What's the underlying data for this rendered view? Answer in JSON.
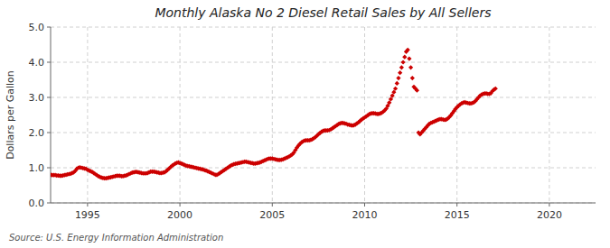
{
  "chart_data": {
    "type": "scatter",
    "title": "Monthly Alaska No 2 Diesel Retail Sales by All Sellers",
    "ylabel": "Dollars per Gallon",
    "source": "Source: U.S. Energy Information Administration",
    "color": "#cc0000",
    "marker": "diamond",
    "grid": true,
    "xlim": [
      1993.0,
      2022.5
    ],
    "ylim": [
      0.0,
      5.0
    ],
    "xticks": [
      1995,
      2000,
      2005,
      2010,
      2015,
      2020
    ],
    "yticks": [
      {
        "value": 0.0,
        "label": "0.0"
      },
      {
        "value": 1.0,
        "label": "1.0"
      },
      {
        "value": 2.0,
        "label": "2.0"
      },
      {
        "value": 3.0,
        "label": "3.0"
      },
      {
        "value": 4.0,
        "label": "4.0"
      },
      {
        "value": 5.0,
        "label": "5.0"
      }
    ],
    "x": [
      1993,
      1993.0833333333,
      1993.1666666667,
      1993.25,
      1993.3333333333,
      1993.4166666667,
      1993.5,
      1993.5833333333,
      1993.6666666667,
      1993.75,
      1993.8333333333,
      1993.9166666667,
      1994,
      1994.0833333333,
      1994.1666666667,
      1994.25,
      1994.3333333333,
      1994.4166666667,
      1994.5,
      1994.5833333333,
      1994.6666666667,
      1994.75,
      1994.8333333333,
      1994.9166666667,
      1995,
      1995.0833333333,
      1995.1666666667,
      1995.25,
      1995.3333333333,
      1995.4166666667,
      1995.5,
      1995.5833333333,
      1995.6666666667,
      1995.75,
      1995.8333333333,
      1995.9166666667,
      1996,
      1996.0833333333,
      1996.1666666667,
      1996.25,
      1996.3333333333,
      1996.4166666667,
      1996.5,
      1996.5833333333,
      1996.6666666667,
      1996.75,
      1996.8333333333,
      1996.9166666667,
      1997,
      1997.0833333333,
      1997.1666666667,
      1997.25,
      1997.3333333333,
      1997.4166666667,
      1997.5,
      1997.5833333333,
      1997.6666666667,
      1997.75,
      1997.8333333333,
      1997.9166666667,
      1998,
      1998.0833333333,
      1998.1666666667,
      1998.25,
      1998.3333333333,
      1998.4166666667,
      1998.5,
      1998.5833333333,
      1998.6666666667,
      1998.75,
      1998.8333333333,
      1998.9166666667,
      1999,
      1999.0833333333,
      1999.1666666667,
      1999.25,
      1999.3333333333,
      1999.4166666667,
      1999.5,
      1999.5833333333,
      1999.6666666667,
      1999.75,
      1999.8333333333,
      1999.9166666667,
      2000,
      2000.0833333333,
      2000.1666666667,
      2000.25,
      2000.3333333333,
      2000.4166666667,
      2000.5,
      2000.5833333333,
      2000.6666666667,
      2000.75,
      2000.8333333333,
      2000.9166666667,
      2001,
      2001.0833333333,
      2001.1666666667,
      2001.25,
      2001.3333333333,
      2001.4166666667,
      2001.5,
      2001.5833333333,
      2001.6666666667,
      2001.75,
      2001.8333333333,
      2001.9166666667,
      2002,
      2002.0833333333,
      2002.1666666667,
      2002.25,
      2002.3333333333,
      2002.4166666667,
      2002.5,
      2002.5833333333,
      2002.6666666667,
      2002.75,
      2002.8333333333,
      2002.9166666667,
      2003,
      2003.0833333333,
      2003.1666666667,
      2003.25,
      2003.3333333333,
      2003.4166666667,
      2003.5,
      2003.5833333333,
      2003.6666666667,
      2003.75,
      2003.8333333333,
      2003.9166666667,
      2004,
      2004.0833333333,
      2004.1666666667,
      2004.25,
      2004.3333333333,
      2004.4166666667,
      2004.5,
      2004.5833333333,
      2004.6666666667,
      2004.75,
      2004.8333333333,
      2004.9166666667,
      2005,
      2005.0833333333,
      2005.1666666667,
      2005.25,
      2005.3333333333,
      2005.4166666667,
      2005.5,
      2005.5833333333,
      2005.6666666667,
      2005.75,
      2005.8333333333,
      2005.9166666667,
      2006,
      2006.0833333333,
      2006.1666666667,
      2006.25,
      2006.3333333333,
      2006.4166666667,
      2006.5,
      2006.5833333333,
      2006.6666666667,
      2006.75,
      2006.8333333333,
      2006.9166666667,
      2007,
      2007.0833333333,
      2007.1666666667,
      2007.25,
      2007.3333333333,
      2007.4166666667,
      2007.5,
      2007.5833333333,
      2007.6666666667,
      2007.75,
      2007.8333333333,
      2007.9166666667,
      2008,
      2008.0833333333,
      2008.1666666667,
      2008.25,
      2008.3333333333,
      2008.4166666667,
      2008.5,
      2008.5833333333,
      2008.6666666667,
      2008.75,
      2008.8333333333,
      2008.9166666667,
      2009,
      2009.0833333333,
      2009.1666666667,
      2009.25,
      2009.3333333333,
      2009.4166666667,
      2009.5,
      2009.5833333333,
      2009.6666666667,
      2009.75,
      2009.8333333333,
      2009.9166666667,
      2010,
      2010.0833333333,
      2010.1666666667,
      2010.25,
      2010.3333333333,
      2010.4166666667,
      2010.5,
      2010.5833333333,
      2010.6666666667,
      2010.75,
      2010.8333333333,
      2010.9166666667,
      2011,
      2011.0833333333,
      2011.1666666667,
      2011.25,
      2011.3333333333,
      2011.4166666667,
      2011.5,
      2011.5833333333,
      2011.6666666667,
      2011.75,
      2011.8333333333,
      2011.9166666667,
      2012,
      2012.0833333333,
      2012.1666666667,
      2012.25,
      2012.3333333333,
      2012.4166666667,
      2012.5,
      2012.5833333333,
      2012.6666666667,
      2012.75,
      2012.8333333333,
      2012.9166666667,
      2013,
      2013.0833333333,
      2013.1666666667,
      2013.25,
      2013.3333333333,
      2013.4166666667,
      2013.5,
      2013.5833333333,
      2013.6666666667,
      2013.75,
      2013.8333333333,
      2013.9166666667,
      2014,
      2014.0833333333,
      2014.1666666667,
      2014.25,
      2014.3333333333,
      2014.4166666667,
      2014.5,
      2014.5833333333,
      2014.6666666667,
      2014.75,
      2014.8333333333,
      2014.9166666667,
      2015,
      2015.0833333333,
      2015.1666666667,
      2015.25,
      2015.3333333333,
      2015.4166666667,
      2015.5,
      2015.5833333333,
      2015.6666666667,
      2015.75,
      2015.8333333333,
      2015.9166666667,
      2016,
      2016.0833333333,
      2016.1666666667,
      2016.25,
      2016.3333333333,
      2016.4166666667,
      2016.5,
      2016.5833333333,
      2016.6666666667,
      2016.75,
      2016.8333333333,
      2016.9166666667,
      2017,
      2017.0833333333
    ],
    "values": [
      0.8,
      0.79,
      0.79,
      0.79,
      0.78,
      0.78,
      0.77,
      0.77,
      0.78,
      0.79,
      0.8,
      0.81,
      0.82,
      0.83,
      0.85,
      0.87,
      0.91,
      0.97,
      1.0,
      1.01,
      1.0,
      0.99,
      0.98,
      0.97,
      0.94,
      0.92,
      0.9,
      0.88,
      0.85,
      0.82,
      0.79,
      0.76,
      0.74,
      0.72,
      0.71,
      0.7,
      0.7,
      0.71,
      0.72,
      0.73,
      0.74,
      0.75,
      0.76,
      0.77,
      0.77,
      0.77,
      0.76,
      0.76,
      0.77,
      0.78,
      0.8,
      0.82,
      0.84,
      0.86,
      0.87,
      0.88,
      0.88,
      0.87,
      0.86,
      0.85,
      0.84,
      0.84,
      0.84,
      0.85,
      0.87,
      0.89,
      0.89,
      0.89,
      0.88,
      0.87,
      0.86,
      0.85,
      0.85,
      0.86,
      0.87,
      0.9,
      0.94,
      0.98,
      1.02,
      1.06,
      1.09,
      1.12,
      1.14,
      1.15,
      1.13,
      1.12,
      1.1,
      1.08,
      1.06,
      1.05,
      1.04,
      1.03,
      1.02,
      1.01,
      1.0,
      0.99,
      0.98,
      0.97,
      0.96,
      0.95,
      0.93,
      0.92,
      0.9,
      0.88,
      0.86,
      0.84,
      0.82,
      0.8,
      0.8,
      0.82,
      0.85,
      0.88,
      0.91,
      0.94,
      0.97,
      1.0,
      1.03,
      1.06,
      1.08,
      1.1,
      1.11,
      1.12,
      1.13,
      1.14,
      1.15,
      1.16,
      1.17,
      1.17,
      1.16,
      1.15,
      1.14,
      1.13,
      1.12,
      1.12,
      1.13,
      1.14,
      1.15,
      1.17,
      1.19,
      1.21,
      1.23,
      1.25,
      1.26,
      1.26,
      1.26,
      1.25,
      1.24,
      1.23,
      1.22,
      1.22,
      1.23,
      1.24,
      1.26,
      1.28,
      1.3,
      1.32,
      1.35,
      1.38,
      1.43,
      1.5,
      1.57,
      1.63,
      1.68,
      1.72,
      1.75,
      1.77,
      1.78,
      1.78,
      1.78,
      1.79,
      1.81,
      1.84,
      1.87,
      1.91,
      1.95,
      1.99,
      2.02,
      2.05,
      2.06,
      2.06,
      2.06,
      2.07,
      2.09,
      2.12,
      2.15,
      2.18,
      2.21,
      2.24,
      2.26,
      2.27,
      2.27,
      2.26,
      2.25,
      2.23,
      2.22,
      2.21,
      2.2,
      2.21,
      2.23,
      2.26,
      2.29,
      2.33,
      2.37,
      2.4,
      2.43,
      2.46,
      2.49,
      2.52,
      2.54,
      2.55,
      2.55,
      2.54,
      2.53,
      2.53,
      2.54,
      2.56,
      2.59,
      2.63,
      2.68,
      2.76,
      2.85,
      2.95,
      3.05,
      3.15,
      3.25,
      3.4,
      3.55,
      3.7,
      3.85,
      4.0,
      4.15,
      4.3,
      4.35,
      4.1,
      3.85,
      3.55,
      3.3,
      3.25,
      3.2,
      2.0,
      1.95,
      2.0,
      2.05,
      2.1,
      2.15,
      2.2,
      2.25,
      2.27,
      2.29,
      2.31,
      2.33,
      2.35,
      2.37,
      2.38,
      2.38,
      2.37,
      2.36,
      2.37,
      2.4,
      2.44,
      2.49,
      2.55,
      2.61,
      2.67,
      2.72,
      2.76,
      2.8,
      2.83,
      2.85,
      2.86,
      2.85,
      2.84,
      2.83,
      2.83,
      2.84,
      2.86,
      2.9,
      2.95,
      3.0,
      3.05,
      3.08,
      3.1,
      3.11,
      3.11,
      3.1,
      3.1,
      3.12,
      3.18,
      3.22,
      3.25
    ]
  }
}
